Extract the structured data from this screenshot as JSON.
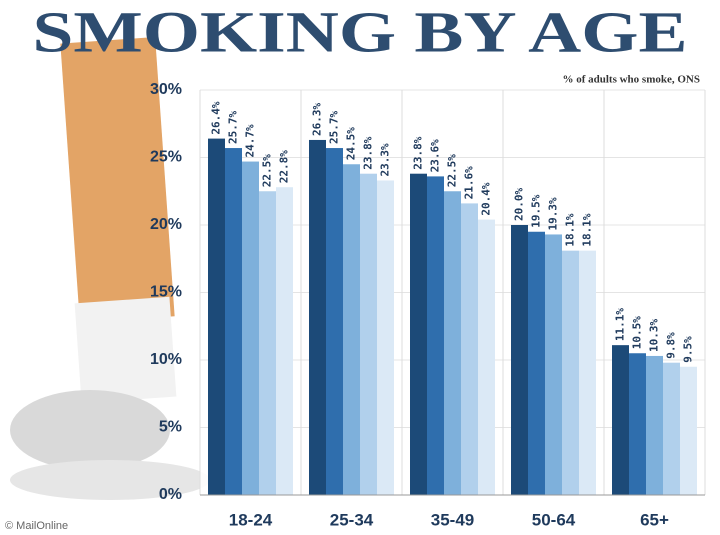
{
  "chart_data": {
    "type": "bar",
    "title": "SMOKING BY AGE",
    "subtitle": "% of adults who smoke, ONS",
    "credit": "© MailOnline",
    "categories": [
      "18-24",
      "25-34",
      "35-49",
      "50-64",
      "65+"
    ],
    "series": [
      {
        "color": "#1c4a78",
        "values": [
          26.4,
          26.3,
          23.8,
          20.0,
          11.1
        ],
        "value_labels": [
          "26.4%",
          "26.3%",
          "23.8%",
          "20.0%",
          "11.1%"
        ]
      },
      {
        "color": "#2f6ead",
        "values": [
          25.7,
          25.7,
          23.6,
          19.5,
          10.5
        ],
        "value_labels": [
          "25.7%",
          "25.7%",
          "23.6%",
          "19.5%",
          "10.5%"
        ]
      },
      {
        "color": "#7eb0db",
        "values": [
          24.7,
          24.5,
          22.5,
          19.3,
          10.3
        ],
        "value_labels": [
          "24.7%",
          "24.5%",
          "22.5%",
          "19.3%",
          "10.3%"
        ]
      },
      {
        "color": "#b1d0ec",
        "values": [
          22.5,
          23.8,
          21.6,
          18.1,
          9.8
        ],
        "value_labels": [
          "22.5%",
          "23.8%",
          "21.6%",
          "18.1%",
          "9.8%"
        ]
      },
      {
        "color": "#dbe9f6",
        "values": [
          22.8,
          23.3,
          20.4,
          18.1,
          9.5
        ],
        "value_labels": [
          "22.8%",
          "23.3%",
          "20.4%",
          "18.1%",
          "9.5%"
        ]
      }
    ],
    "ylim": [
      0,
      30
    ],
    "yticks": [
      {
        "value": 0,
        "label": "0%"
      },
      {
        "value": 5,
        "label": "5%"
      },
      {
        "value": 10,
        "label": "10%"
      },
      {
        "value": 15,
        "label": "15%"
      },
      {
        "value": 20,
        "label": "20%"
      },
      {
        "value": 25,
        "label": "25%"
      },
      {
        "value": 30,
        "label": "30%"
      }
    ],
    "grid": true
  }
}
